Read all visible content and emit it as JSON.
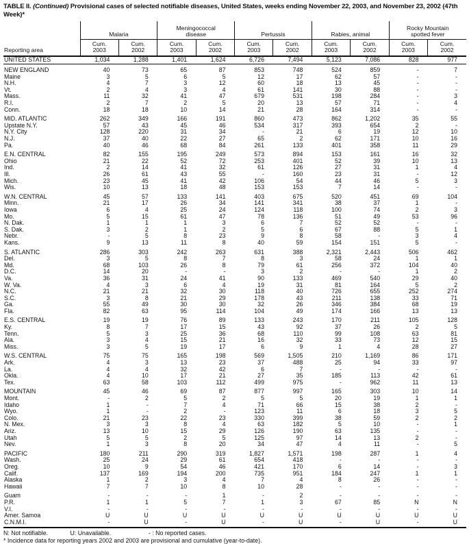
{
  "title": {
    "prefix": "TABLE II. ",
    "continued": "(Continued)",
    "rest": " Provisional cases of selected notifiable diseases, United States, weeks ending November 22, 2003, and November 23, 2002 (47th Week)*"
  },
  "table": {
    "reporting_area_label": "Reporting area",
    "cum_label": "Cum.",
    "years": [
      "2003",
      "2002"
    ],
    "groups": [
      {
        "line1": "",
        "line2": "Malaria"
      },
      {
        "line1": "Meningococcal",
        "line2": "disease"
      },
      {
        "line1": "",
        "line2": "Pertussis"
      },
      {
        "line1": "",
        "line2": "Rabies, animal"
      },
      {
        "line1": "Rocky Mountain",
        "line2": "spotted fever"
      }
    ],
    "rows": [
      {
        "area": "UNITED STATES",
        "type": "total",
        "gap": false,
        "values": [
          "1,034",
          "1,288",
          "1,401",
          "1,624",
          "6,726",
          "7,494",
          "5,123",
          "7,086",
          "828",
          "977"
        ]
      },
      {
        "area": "NEW ENGLAND",
        "type": "region",
        "gap": true,
        "values": [
          "40",
          "73",
          "65",
          "87",
          "853",
          "748",
          "524",
          "859",
          "-",
          "7"
        ]
      },
      {
        "area": "Maine",
        "type": "state",
        "gap": false,
        "values": [
          "3",
          "5",
          "6",
          "5",
          "12",
          "17",
          "62",
          "57",
          "-",
          "-"
        ]
      },
      {
        "area": "N.H.",
        "type": "state",
        "gap": false,
        "values": [
          "4",
          "7",
          "3",
          "12",
          "60",
          "18",
          "13",
          "45",
          "-",
          "-"
        ]
      },
      {
        "area": "Vt.",
        "type": "state",
        "gap": false,
        "values": [
          "2",
          "4",
          "3",
          "4",
          "61",
          "141",
          "30",
          "88",
          "-",
          "-"
        ]
      },
      {
        "area": "Mass.",
        "type": "state",
        "gap": false,
        "values": [
          "11",
          "32",
          "41",
          "47",
          "679",
          "531",
          "198",
          "284",
          "-",
          "3"
        ]
      },
      {
        "area": "R.I.",
        "type": "state",
        "gap": false,
        "values": [
          "2",
          "7",
          "2",
          "5",
          "20",
          "13",
          "57",
          "71",
          "-",
          "4"
        ]
      },
      {
        "area": "Conn.",
        "type": "state",
        "gap": false,
        "values": [
          "18",
          "18",
          "10",
          "14",
          "21",
          "28",
          "164",
          "314",
          "-",
          "-"
        ]
      },
      {
        "area": "MID. ATLANTIC",
        "type": "region",
        "gap": true,
        "values": [
          "262",
          "349",
          "166",
          "191",
          "860",
          "473",
          "862",
          "1,202",
          "35",
          "55"
        ]
      },
      {
        "area": "Upstate N.Y.",
        "type": "state",
        "gap": false,
        "values": [
          "57",
          "43",
          "45",
          "46",
          "534",
          "317",
          "393",
          "654",
          "2",
          "-"
        ]
      },
      {
        "area": "N.Y. City",
        "type": "state",
        "gap": false,
        "values": [
          "128",
          "220",
          "31",
          "34",
          "-",
          "21",
          "6",
          "19",
          "12",
          "10"
        ]
      },
      {
        "area": "N.J.",
        "type": "state",
        "gap": false,
        "values": [
          "37",
          "40",
          "22",
          "27",
          "65",
          "2",
          "62",
          "171",
          "10",
          "16"
        ]
      },
      {
        "area": "Pa.",
        "type": "state",
        "gap": false,
        "values": [
          "40",
          "46",
          "68",
          "84",
          "261",
          "133",
          "401",
          "358",
          "11",
          "29"
        ]
      },
      {
        "area": "E.N. CENTRAL",
        "type": "region",
        "gap": true,
        "values": [
          "82",
          "155",
          "195",
          "249",
          "573",
          "894",
          "153",
          "161",
          "16",
          "32"
        ]
      },
      {
        "area": "Ohio",
        "type": "state",
        "gap": false,
        "values": [
          "21",
          "22",
          "52",
          "72",
          "253",
          "401",
          "52",
          "39",
          "10",
          "13"
        ]
      },
      {
        "area": "Ind.",
        "type": "state",
        "gap": false,
        "values": [
          "2",
          "14",
          "41",
          "32",
          "61",
          "126",
          "27",
          "31",
          "1",
          "4"
        ]
      },
      {
        "area": "Ill.",
        "type": "state",
        "gap": false,
        "values": [
          "26",
          "61",
          "43",
          "55",
          "-",
          "160",
          "23",
          "31",
          "-",
          "12"
        ]
      },
      {
        "area": "Mich.",
        "type": "state",
        "gap": false,
        "values": [
          "23",
          "45",
          "41",
          "42",
          "106",
          "54",
          "44",
          "46",
          "5",
          "3"
        ]
      },
      {
        "area": "Wis.",
        "type": "state",
        "gap": false,
        "values": [
          "10",
          "13",
          "18",
          "48",
          "153",
          "153",
          "7",
          "14",
          "-",
          "-"
        ]
      },
      {
        "area": "W.N. CENTRAL",
        "type": "region",
        "gap": true,
        "values": [
          "45",
          "57",
          "133",
          "141",
          "403",
          "675",
          "520",
          "451",
          "69",
          "104"
        ]
      },
      {
        "area": "Minn.",
        "type": "state",
        "gap": false,
        "values": [
          "21",
          "17",
          "26",
          "34",
          "141",
          "341",
          "38",
          "37",
          "1",
          "-"
        ]
      },
      {
        "area": "Iowa",
        "type": "state",
        "gap": false,
        "values": [
          "6",
          "4",
          "25",
          "24",
          "124",
          "118",
          "100",
          "74",
          "2",
          "3"
        ]
      },
      {
        "area": "Mo.",
        "type": "state",
        "gap": false,
        "values": [
          "5",
          "15",
          "61",
          "47",
          "78",
          "136",
          "51",
          "49",
          "53",
          "96"
        ]
      },
      {
        "area": "N. Dak.",
        "type": "state",
        "gap": false,
        "values": [
          "1",
          "1",
          "1",
          "3",
          "6",
          "7",
          "52",
          "52",
          "-",
          "-"
        ]
      },
      {
        "area": "S. Dak.",
        "type": "state",
        "gap": false,
        "values": [
          "3",
          "2",
          "1",
          "2",
          "5",
          "6",
          "67",
          "88",
          "5",
          "1"
        ]
      },
      {
        "area": "Nebr.",
        "type": "state",
        "gap": false,
        "values": [
          "-",
          "5",
          "8",
          "23",
          "9",
          "8",
          "58",
          "-",
          "3",
          "4"
        ]
      },
      {
        "area": "Kans.",
        "type": "state",
        "gap": false,
        "values": [
          "9",
          "13",
          "11",
          "8",
          "40",
          "59",
          "154",
          "151",
          "5",
          "-"
        ]
      },
      {
        "area": "S. ATLANTIC",
        "type": "region",
        "gap": true,
        "values": [
          "286",
          "303",
          "242",
          "263",
          "631",
          "388",
          "2,321",
          "2,443",
          "506",
          "462"
        ]
      },
      {
        "area": "Del.",
        "type": "state",
        "gap": false,
        "values": [
          "3",
          "5",
          "8",
          "7",
          "8",
          "3",
          "58",
          "24",
          "1",
          "1"
        ]
      },
      {
        "area": "Md.",
        "type": "state",
        "gap": false,
        "values": [
          "68",
          "103",
          "26",
          "8",
          "79",
          "61",
          "256",
          "372",
          "104",
          "40"
        ]
      },
      {
        "area": "D.C.",
        "type": "state",
        "gap": false,
        "values": [
          "14",
          "20",
          "-",
          "-",
          "3",
          "2",
          "-",
          "-",
          "1",
          "2"
        ]
      },
      {
        "area": "Va.",
        "type": "state",
        "gap": false,
        "values": [
          "36",
          "31",
          "24",
          "41",
          "90",
          "133",
          "469",
          "540",
          "29",
          "40"
        ]
      },
      {
        "area": "W. Va.",
        "type": "state",
        "gap": false,
        "values": [
          "4",
          "3",
          "6",
          "4",
          "19",
          "31",
          "81",
          "164",
          "5",
          "2"
        ]
      },
      {
        "area": "N.C.",
        "type": "state",
        "gap": false,
        "values": [
          "21",
          "21",
          "32",
          "30",
          "118",
          "40",
          "726",
          "655",
          "252",
          "274"
        ]
      },
      {
        "area": "S.C.",
        "type": "state",
        "gap": false,
        "values": [
          "3",
          "8",
          "21",
          "29",
          "178",
          "43",
          "211",
          "138",
          "33",
          "71"
        ]
      },
      {
        "area": "Ga.",
        "type": "state",
        "gap": false,
        "values": [
          "55",
          "49",
          "30",
          "30",
          "32",
          "26",
          "346",
          "384",
          "68",
          "19"
        ]
      },
      {
        "area": "Fla.",
        "type": "state",
        "gap": false,
        "values": [
          "82",
          "63",
          "95",
          "114",
          "104",
          "49",
          "174",
          "166",
          "13",
          "13"
        ]
      },
      {
        "area": "E.S. CENTRAL",
        "type": "region",
        "gap": true,
        "values": [
          "19",
          "19",
          "76",
          "89",
          "133",
          "243",
          "170",
          "211",
          "105",
          "128"
        ]
      },
      {
        "area": "Ky.",
        "type": "state",
        "gap": false,
        "values": [
          "8",
          "7",
          "17",
          "15",
          "43",
          "92",
          "37",
          "26",
          "2",
          "5"
        ]
      },
      {
        "area": "Tenn.",
        "type": "state",
        "gap": false,
        "values": [
          "5",
          "3",
          "25",
          "36",
          "68",
          "110",
          "99",
          "108",
          "63",
          "81"
        ]
      },
      {
        "area": "Ala.",
        "type": "state",
        "gap": false,
        "values": [
          "3",
          "4",
          "15",
          "21",
          "16",
          "32",
          "33",
          "73",
          "12",
          "15"
        ]
      },
      {
        "area": "Miss.",
        "type": "state",
        "gap": false,
        "values": [
          "3",
          "5",
          "19",
          "17",
          "6",
          "9",
          "1",
          "4",
          "28",
          "27"
        ]
      },
      {
        "area": "W.S. CENTRAL",
        "type": "region",
        "gap": true,
        "values": [
          "75",
          "75",
          "165",
          "198",
          "569",
          "1,505",
          "210",
          "1,169",
          "86",
          "171"
        ]
      },
      {
        "area": "Ark.",
        "type": "state",
        "gap": false,
        "values": [
          "4",
          "3",
          "13",
          "23",
          "37",
          "488",
          "25",
          "94",
          "33",
          "97"
        ]
      },
      {
        "area": "La.",
        "type": "state",
        "gap": false,
        "values": [
          "4",
          "4",
          "32",
          "42",
          "6",
          "7",
          "-",
          "-",
          "-",
          "-"
        ]
      },
      {
        "area": "Okla.",
        "type": "state",
        "gap": false,
        "values": [
          "4",
          "10",
          "17",
          "21",
          "27",
          "35",
          "185",
          "113",
          "42",
          "61"
        ]
      },
      {
        "area": "Tex.",
        "type": "state",
        "gap": false,
        "values": [
          "63",
          "58",
          "103",
          "112",
          "499",
          "975",
          "-",
          "962",
          "11",
          "13"
        ]
      },
      {
        "area": "MOUNTAIN",
        "type": "region",
        "gap": true,
        "values": [
          "45",
          "46",
          "69",
          "87",
          "877",
          "997",
          "165",
          "303",
          "10",
          "14"
        ]
      },
      {
        "area": "Mont.",
        "type": "state",
        "gap": false,
        "values": [
          "-",
          "2",
          "5",
          "2",
          "5",
          "5",
          "20",
          "19",
          "1",
          "1"
        ]
      },
      {
        "area": "Idaho",
        "type": "state",
        "gap": false,
        "values": [
          "1",
          "-",
          "7",
          "4",
          "71",
          "66",
          "15",
          "38",
          "2",
          "-"
        ]
      },
      {
        "area": "Wyo.",
        "type": "state",
        "gap": false,
        "values": [
          "1",
          "-",
          "2",
          "-",
          "123",
          "11",
          "6",
          "18",
          "3",
          "5"
        ]
      },
      {
        "area": "Colo.",
        "type": "state",
        "gap": false,
        "values": [
          "21",
          "23",
          "22",
          "23",
          "330",
          "399",
          "38",
          "59",
          "2",
          "2"
        ]
      },
      {
        "area": "N. Mex.",
        "type": "state",
        "gap": false,
        "values": [
          "3",
          "3",
          "8",
          "4",
          "63",
          "182",
          "5",
          "10",
          "-",
          "1"
        ]
      },
      {
        "area": "Ariz.",
        "type": "state",
        "gap": false,
        "values": [
          "13",
          "10",
          "15",
          "29",
          "126",
          "190",
          "63",
          "135",
          "-",
          "-"
        ]
      },
      {
        "area": "Utah",
        "type": "state",
        "gap": false,
        "values": [
          "5",
          "5",
          "2",
          "5",
          "125",
          "97",
          "14",
          "13",
          "2",
          "-"
        ]
      },
      {
        "area": "Nev.",
        "type": "state",
        "gap": false,
        "values": [
          "1",
          "3",
          "8",
          "20",
          "34",
          "47",
          "4",
          "11",
          "-",
          "5"
        ]
      },
      {
        "area": "PACIFIC",
        "type": "region",
        "gap": true,
        "values": [
          "180",
          "211",
          "290",
          "319",
          "1,827",
          "1,571",
          "198",
          "287",
          "1",
          "4"
        ]
      },
      {
        "area": "Wash.",
        "type": "state",
        "gap": false,
        "values": [
          "25",
          "24",
          "29",
          "61",
          "654",
          "418",
          "-",
          "-",
          "-",
          "-"
        ]
      },
      {
        "area": "Oreg.",
        "type": "state",
        "gap": false,
        "values": [
          "10",
          "9",
          "54",
          "46",
          "421",
          "170",
          "6",
          "14",
          "-",
          "3"
        ]
      },
      {
        "area": "Calif.",
        "type": "state",
        "gap": false,
        "values": [
          "137",
          "169",
          "194",
          "200",
          "735",
          "951",
          "184",
          "247",
          "1",
          "1"
        ]
      },
      {
        "area": "Alaska",
        "type": "state",
        "gap": false,
        "values": [
          "1",
          "2",
          "3",
          "4",
          "7",
          "4",
          "8",
          "26",
          "-",
          "-"
        ]
      },
      {
        "area": "Hawaii",
        "type": "state",
        "gap": false,
        "values": [
          "7",
          "7",
          "10",
          "8",
          "10",
          "28",
          "-",
          "-",
          "-",
          "-"
        ]
      },
      {
        "area": "Guam",
        "type": "territory",
        "gap": true,
        "values": [
          "-",
          "-",
          "-",
          "1",
          "-",
          "2",
          "-",
          "-",
          "-",
          "-"
        ]
      },
      {
        "area": "P.R.",
        "type": "territory",
        "gap": false,
        "values": [
          "1",
          "1",
          "5",
          "7",
          "1",
          "3",
          "67",
          "85",
          "N",
          "N"
        ]
      },
      {
        "area": "V.I.",
        "type": "territory",
        "gap": false,
        "values": [
          "-",
          "-",
          "-",
          "-",
          "-",
          "-",
          "-",
          "-",
          "-",
          "-"
        ]
      },
      {
        "area": "Amer. Samoa",
        "type": "territory",
        "gap": false,
        "values": [
          "U",
          "U",
          "U",
          "U",
          "U",
          "U",
          "U",
          "U",
          "U",
          "U"
        ]
      },
      {
        "area": "C.N.M.I.",
        "type": "territory",
        "gap": false,
        "values": [
          "-",
          "U",
          "-",
          "U",
          "-",
          "U",
          "-",
          "U",
          "-",
          "U"
        ]
      }
    ]
  },
  "footnotes": {
    "not_notifiable": "N: Not notifiable.",
    "unavailable": "U: Unavailable.",
    "no_cases": "- : No reported cases.",
    "incidence_note": "* Incidence data for reporting years 2002 and 2003 are provisional and cumulative (year-to-date)."
  }
}
